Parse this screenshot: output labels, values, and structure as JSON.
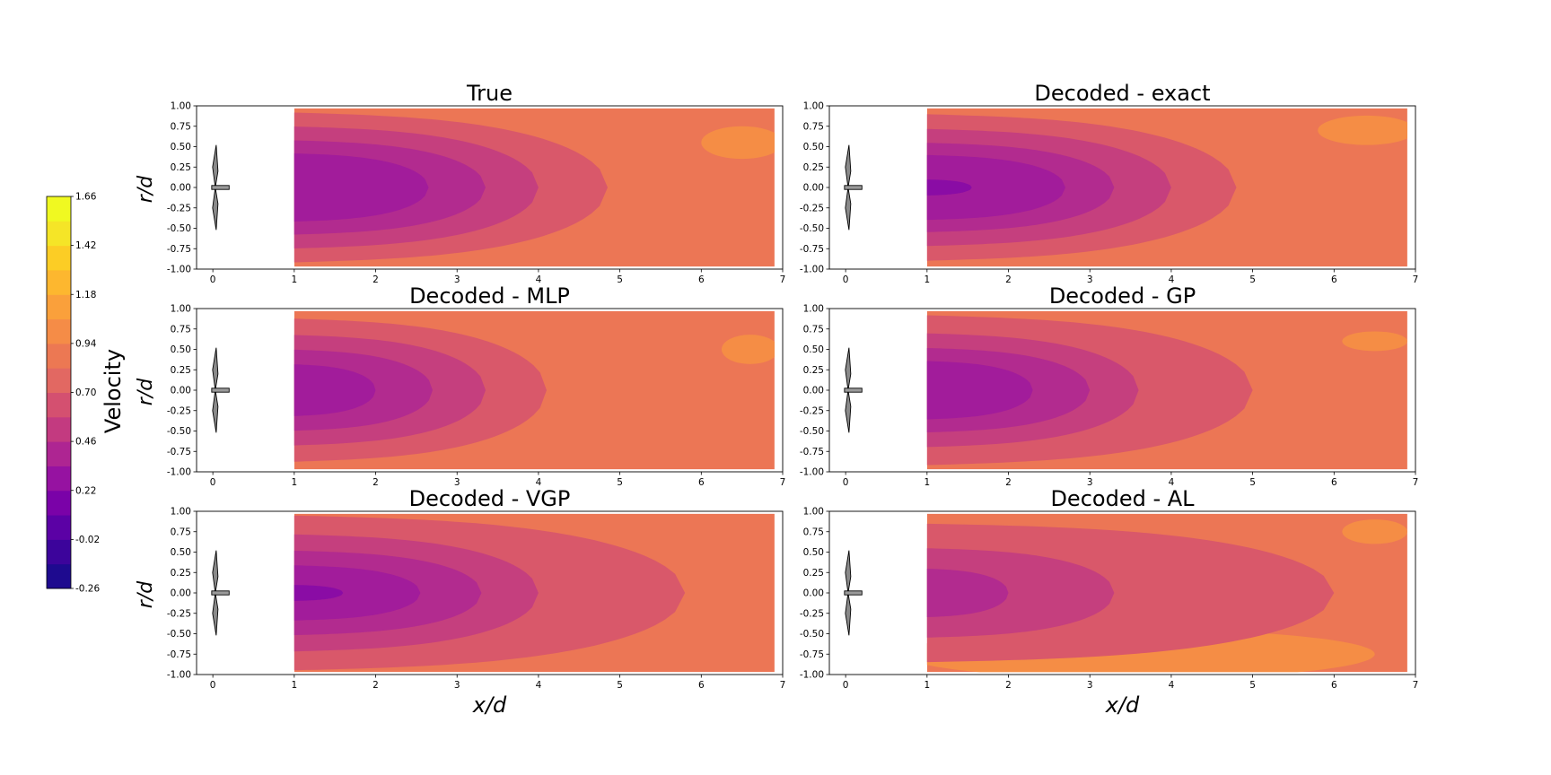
{
  "figure": {
    "colorbar": {
      "label": "Velocity",
      "tick_labels": [
        "1.66",
        "1.42",
        "1.18",
        "0.94",
        "0.70",
        "0.46",
        "0.22",
        "-0.02",
        "-0.26"
      ],
      "levels": [
        -0.26,
        -0.14,
        -0.02,
        0.1,
        0.22,
        0.34,
        0.46,
        0.58,
        0.7,
        0.82,
        0.94,
        1.06,
        1.18,
        1.3,
        1.42,
        1.54,
        1.66
      ],
      "colors": [
        "#0d0887",
        "#41049d",
        "#6a00a8",
        "#8f0da4",
        "#b12a90",
        "#cb4679",
        "#e16462",
        "#f1834b",
        "#fca636",
        "#fccd25",
        "#f0f921",
        "#2a0593",
        "#5601a4",
        "#7e03a8",
        "#a11b9b",
        "#bd3786",
        "#d35171",
        "#e56b5d",
        "#f48849",
        "#fba238",
        "#fec029",
        "#f9dd25"
      ]
    },
    "xlabel": "x/d",
    "ylabel": "r/d",
    "x_ticks": [
      "0",
      "1",
      "2",
      "3",
      "4",
      "5",
      "6",
      "7"
    ],
    "y_ticks": [
      "1.00",
      "0.75",
      "0.50",
      "0.25",
      "0.00",
      "-0.25",
      "-0.50",
      "-0.75",
      "-1.00"
    ]
  },
  "chart_data": [
    {
      "type": "contour",
      "title": "True",
      "xlim": [
        -0.2,
        7
      ],
      "ylim": [
        -1,
        1
      ],
      "field_x_range": [
        1,
        6.9
      ],
      "field_y_range": [
        -0.97,
        0.97
      ],
      "wake": [
        {
          "level": 0.82,
          "x_end": 4.85,
          "half_width": 0.92
        },
        {
          "level": 0.7,
          "x_end": 4.0,
          "half_width": 0.75
        },
        {
          "level": 0.58,
          "x_end": 3.35,
          "half_width": 0.58
        },
        {
          "level": 0.46,
          "x_end": 2.65,
          "half_width": 0.42
        }
      ],
      "background_level": 0.94,
      "high_regions": [
        {
          "level": 1.06,
          "cx": 6.5,
          "cy": 0.55,
          "rx": 0.5,
          "ry": 0.2
        }
      ]
    },
    {
      "type": "contour",
      "title": "Decoded - exact",
      "xlim": [
        -0.2,
        7
      ],
      "ylim": [
        -1,
        1
      ],
      "field_x_range": [
        1,
        6.9
      ],
      "field_y_range": [
        -0.97,
        0.97
      ],
      "wake": [
        {
          "level": 0.82,
          "x_end": 4.8,
          "half_width": 0.9
        },
        {
          "level": 0.7,
          "x_end": 4.0,
          "half_width": 0.72
        },
        {
          "level": 0.58,
          "x_end": 3.3,
          "half_width": 0.55
        },
        {
          "level": 0.46,
          "x_end": 2.7,
          "half_width": 0.4
        },
        {
          "level": 0.34,
          "x_end": 1.55,
          "half_width": 0.1
        }
      ],
      "background_level": 0.94,
      "high_regions": [
        {
          "level": 1.06,
          "cx": 6.4,
          "cy": 0.7,
          "rx": 0.6,
          "ry": 0.18
        }
      ]
    },
    {
      "type": "contour",
      "title": "Decoded - MLP",
      "xlim": [
        -0.2,
        7
      ],
      "ylim": [
        -1,
        1
      ],
      "field_x_range": [
        1,
        6.9
      ],
      "field_y_range": [
        -0.97,
        0.97
      ],
      "wake": [
        {
          "level": 0.82,
          "x_end": 4.1,
          "half_width": 0.88
        },
        {
          "level": 0.7,
          "x_end": 3.35,
          "half_width": 0.68
        },
        {
          "level": 0.58,
          "x_end": 2.7,
          "half_width": 0.5
        },
        {
          "level": 0.46,
          "x_end": 2.0,
          "half_width": 0.32
        }
      ],
      "background_level": 0.94,
      "high_regions": [
        {
          "level": 1.06,
          "cx": 6.6,
          "cy": 0.5,
          "rx": 0.35,
          "ry": 0.18
        }
      ]
    },
    {
      "type": "contour",
      "title": "Decoded - GP",
      "xlim": [
        -0.2,
        7
      ],
      "ylim": [
        -1,
        1
      ],
      "field_x_range": [
        1,
        6.9
      ],
      "field_y_range": [
        -0.97,
        0.97
      ],
      "wake": [
        {
          "level": 0.82,
          "x_end": 5.0,
          "half_width": 0.92
        },
        {
          "level": 0.7,
          "x_end": 3.6,
          "half_width": 0.7
        },
        {
          "level": 0.58,
          "x_end": 3.0,
          "half_width": 0.52
        },
        {
          "level": 0.46,
          "x_end": 2.3,
          "half_width": 0.36
        }
      ],
      "background_level": 0.94,
      "high_regions": [
        {
          "level": 1.06,
          "cx": 6.5,
          "cy": 0.6,
          "rx": 0.4,
          "ry": 0.12
        }
      ]
    },
    {
      "type": "contour",
      "title": "Decoded - VGP",
      "xlim": [
        -0.2,
        7
      ],
      "ylim": [
        -1,
        1
      ],
      "field_x_range": [
        1,
        6.9
      ],
      "field_y_range": [
        -0.97,
        0.97
      ],
      "wake": [
        {
          "level": 0.82,
          "x_end": 5.8,
          "half_width": 0.95
        },
        {
          "level": 0.7,
          "x_end": 4.0,
          "half_width": 0.72
        },
        {
          "level": 0.58,
          "x_end": 3.3,
          "half_width": 0.52
        },
        {
          "level": 0.46,
          "x_end": 2.55,
          "half_width": 0.34
        },
        {
          "level": 0.34,
          "x_end": 1.6,
          "half_width": 0.1
        }
      ],
      "background_level": 0.94,
      "high_regions": []
    },
    {
      "type": "contour",
      "title": "Decoded - AL",
      "xlim": [
        -0.2,
        7
      ],
      "ylim": [
        -1,
        1
      ],
      "field_x_range": [
        1,
        6.9
      ],
      "field_y_range": [
        -0.97,
        0.97
      ],
      "wake": [
        {
          "level": 0.82,
          "x_end": 6.0,
          "half_width": 0.85
        },
        {
          "level": 0.7,
          "x_end": 3.3,
          "half_width": 0.55
        },
        {
          "level": 0.58,
          "x_end": 2.0,
          "half_width": 0.3
        }
      ],
      "background_level": 0.94,
      "high_regions": [
        {
          "level": 1.06,
          "cx": 3.6,
          "cy": -0.75,
          "rx": 2.9,
          "ry": 0.3
        },
        {
          "level": 1.18,
          "cx": 3.2,
          "cy": -0.52,
          "rx": 1.8,
          "ry": 0.14
        },
        {
          "level": 1.06,
          "cx": 6.5,
          "cy": 0.75,
          "rx": 0.4,
          "ry": 0.15
        }
      ]
    }
  ]
}
